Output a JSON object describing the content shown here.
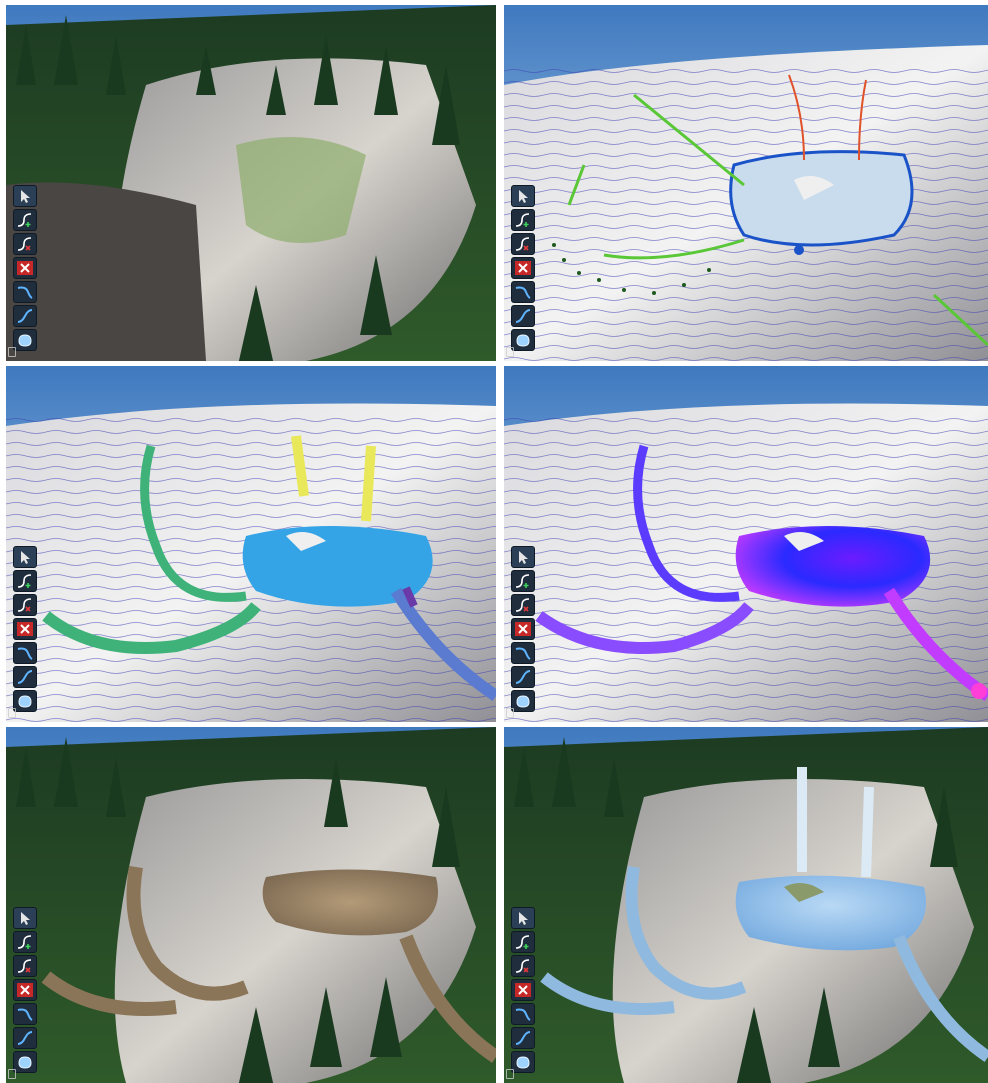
{
  "panels": [
    {
      "id": "p1",
      "view": "textured-render",
      "label": ""
    },
    {
      "id": "p2",
      "view": "sketch-annotations",
      "label": ""
    },
    {
      "id": "p3",
      "view": "segment-classification",
      "label": ""
    },
    {
      "id": "p4",
      "view": "flow-field",
      "label": ""
    },
    {
      "id": "p5",
      "view": "riverbed-material",
      "label": ""
    },
    {
      "id": "p6",
      "view": "water-render",
      "label": ""
    }
  ],
  "toolbar": {
    "tools": [
      {
        "name": "select-tool",
        "icon": "cursor-icon"
      },
      {
        "name": "add-curve-tool",
        "icon": "curve-add-icon"
      },
      {
        "name": "remove-curve-tool",
        "icon": "curve-remove-icon"
      },
      {
        "name": "delete-tool",
        "icon": "delete-x-icon"
      },
      {
        "name": "river-tool",
        "icon": "river-curve-icon"
      },
      {
        "name": "waterfall-tool",
        "icon": "waterfall-curve-icon"
      },
      {
        "name": "lake-tool",
        "icon": "lake-blob-icon"
      }
    ]
  },
  "colors": {
    "sky": "#4d86c6",
    "lake_blue": "#35a4e6",
    "river_green": "#3fb27a",
    "waterfall_yellow": "#e8e85a",
    "outlet_purple": "#6a3aa8",
    "flow_magenta": "#ff3fd8",
    "flow_blue": "#2a2aff",
    "sketch_green": "#59c736",
    "sketch_orange": "#e0522a",
    "sketch_blue": "#1a53c8"
  }
}
